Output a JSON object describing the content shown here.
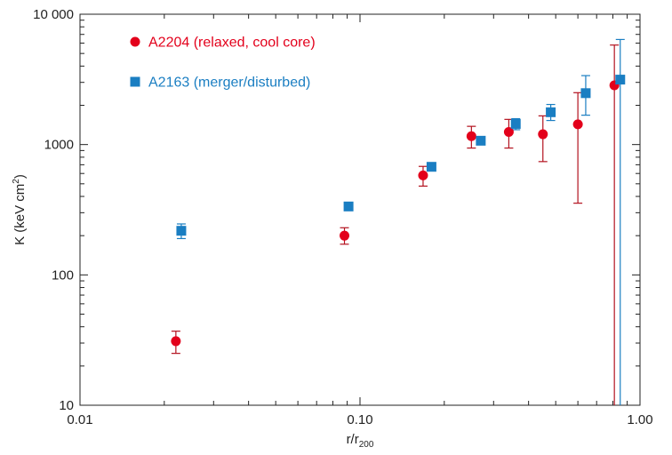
{
  "chart_data": {
    "type": "scatter",
    "title": "",
    "x_scale": "log",
    "y_scale": "log",
    "xlim": [
      0.01,
      1.0
    ],
    "ylim": [
      10,
      10000
    ],
    "grid": false,
    "legend_placement": "top-left",
    "x_ticks": [
      {
        "value": 0.01,
        "label": "0.01"
      },
      {
        "value": 0.1,
        "label": "0.10"
      },
      {
        "value": 1.0,
        "label": "1.00"
      }
    ],
    "y_ticks": [
      {
        "value": 10,
        "label": "10"
      },
      {
        "value": 100,
        "label": "100"
      },
      {
        "value": 1000,
        "label": "1000"
      },
      {
        "value": 10000,
        "label": "10 000"
      }
    ],
    "xlabel": {
      "main": "r/r",
      "sub": "200"
    },
    "ylabel": {
      "main": "K (keV cm",
      "sup": "2",
      "tail": ")"
    },
    "series": [
      {
        "name": "A2204 (relaxed, cool core)",
        "color": "#e3001b",
        "marker": "circle",
        "points": [
          {
            "x": 0.022,
            "y": 31,
            "ylo": 25,
            "yhi": 37
          },
          {
            "x": 0.088,
            "y": 200,
            "ylo": 172,
            "yhi": 230
          },
          {
            "x": 0.168,
            "y": 580,
            "ylo": 480,
            "yhi": 680
          },
          {
            "x": 0.25,
            "y": 1160,
            "ylo": 940,
            "yhi": 1380
          },
          {
            "x": 0.34,
            "y": 1250,
            "ylo": 940,
            "yhi": 1560
          },
          {
            "x": 0.45,
            "y": 1200,
            "ylo": 740,
            "yhi": 1660
          },
          {
            "x": 0.6,
            "y": 1430,
            "ylo": 355,
            "yhi": 2500
          },
          {
            "x": 0.81,
            "y": 2850,
            "ylo": 10,
            "yhi": 5800
          }
        ]
      },
      {
        "name": "A2163 (merger/disturbed)",
        "color": "#1a7ec2",
        "marker": "square",
        "points": [
          {
            "x": 0.023,
            "y": 218,
            "ylo": 190,
            "yhi": 246
          },
          {
            "x": 0.091,
            "y": 335,
            "ylo": 320,
            "yhi": 350
          },
          {
            "x": 0.18,
            "y": 675,
            "ylo": 630,
            "yhi": 720
          },
          {
            "x": 0.27,
            "y": 1070,
            "ylo": 1000,
            "yhi": 1140
          },
          {
            "x": 0.36,
            "y": 1440,
            "ylo": 1300,
            "yhi": 1580
          },
          {
            "x": 0.48,
            "y": 1770,
            "ylo": 1530,
            "yhi": 2030
          },
          {
            "x": 0.64,
            "y": 2480,
            "ylo": 1680,
            "yhi": 3380
          },
          {
            "x": 0.85,
            "y": 3150,
            "ylo": 10,
            "yhi": 6400
          }
        ]
      }
    ]
  }
}
